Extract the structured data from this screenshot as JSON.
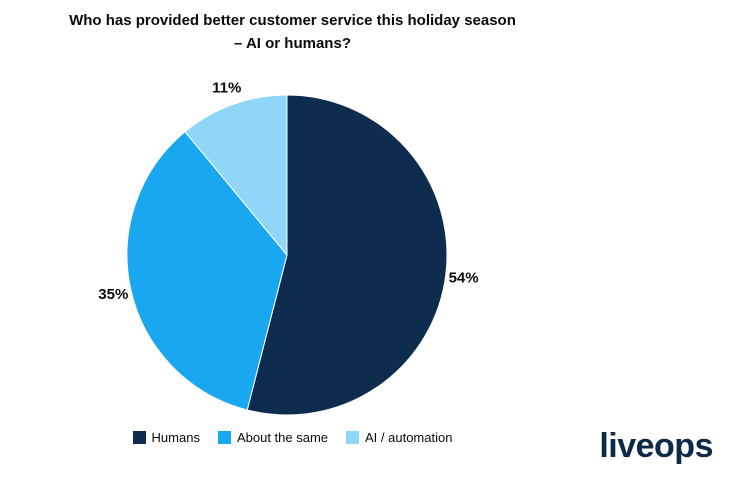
{
  "title": {
    "line1": "Who has provided better customer service this holiday season",
    "line2": "– AI or humans?"
  },
  "chart_data": {
    "type": "pie",
    "title": "Who has provided better customer service this holiday season – AI or humans?",
    "categories": [
      "Humans",
      "About the same",
      "AI / automation"
    ],
    "values": [
      54,
      35,
      11
    ],
    "labels": [
      "54%",
      "35%",
      "11%"
    ],
    "colors": [
      "#0d2c4e",
      "#19a8f0",
      "#8fd6f9"
    ],
    "start_angle_deg": -90,
    "direction": "clockwise",
    "legend_position": "bottom"
  },
  "logo_text": "liveops"
}
